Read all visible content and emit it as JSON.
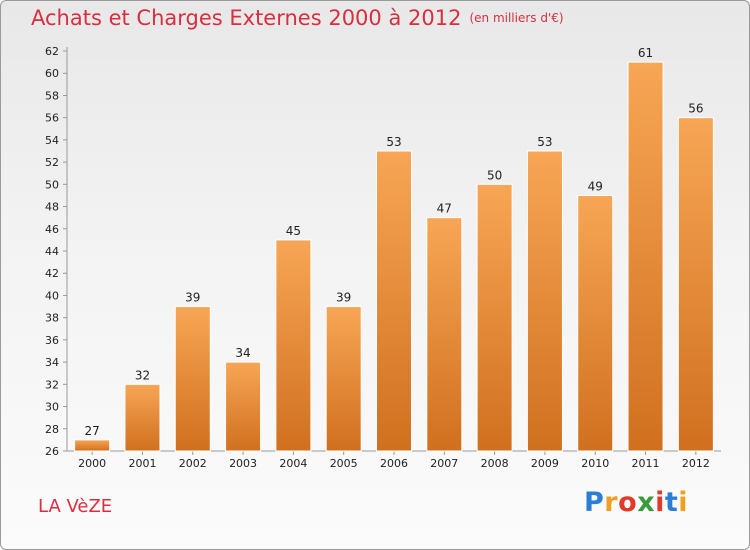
{
  "header": {
    "title": "Achats et Charges Externes 2000 à 2012",
    "unit": "(en milliers d'€)"
  },
  "footer": {
    "place": "LA VèZE",
    "logo_letters": [
      {
        "ch": "P",
        "color": "#2a7fd4"
      },
      {
        "ch": "r",
        "color": "#f0a020"
      },
      {
        "ch": "o",
        "color": "#e23a2a"
      },
      {
        "ch": "x",
        "color": "#3a9a3a"
      },
      {
        "ch": "i",
        "color": "#e23a2a"
      },
      {
        "ch": "t",
        "color": "#2a7fd4"
      },
      {
        "ch": "i",
        "color": "#f0a020"
      }
    ]
  },
  "chart_data": {
    "type": "bar",
    "title": "Achats et Charges Externes 2000 à 2012",
    "subtitle": "(en milliers d'€)",
    "xlabel": "",
    "ylabel": "",
    "categories": [
      "2000",
      "2001",
      "2002",
      "2003",
      "2004",
      "2005",
      "2006",
      "2007",
      "2008",
      "2009",
      "2010",
      "2011",
      "2012"
    ],
    "values": [
      27,
      32,
      39,
      34,
      45,
      39,
      53,
      47,
      50,
      53,
      49,
      61,
      56
    ],
    "ylim": [
      26,
      62
    ],
    "yticks": [
      26,
      28,
      30,
      32,
      34,
      36,
      38,
      40,
      42,
      44,
      46,
      48,
      50,
      52,
      54,
      56,
      58,
      60,
      62
    ],
    "grid": false,
    "legend": "none",
    "colors": {
      "bar_top": "#f7a655",
      "bar_bottom": "#d0701f",
      "axis": "#999999"
    }
  }
}
